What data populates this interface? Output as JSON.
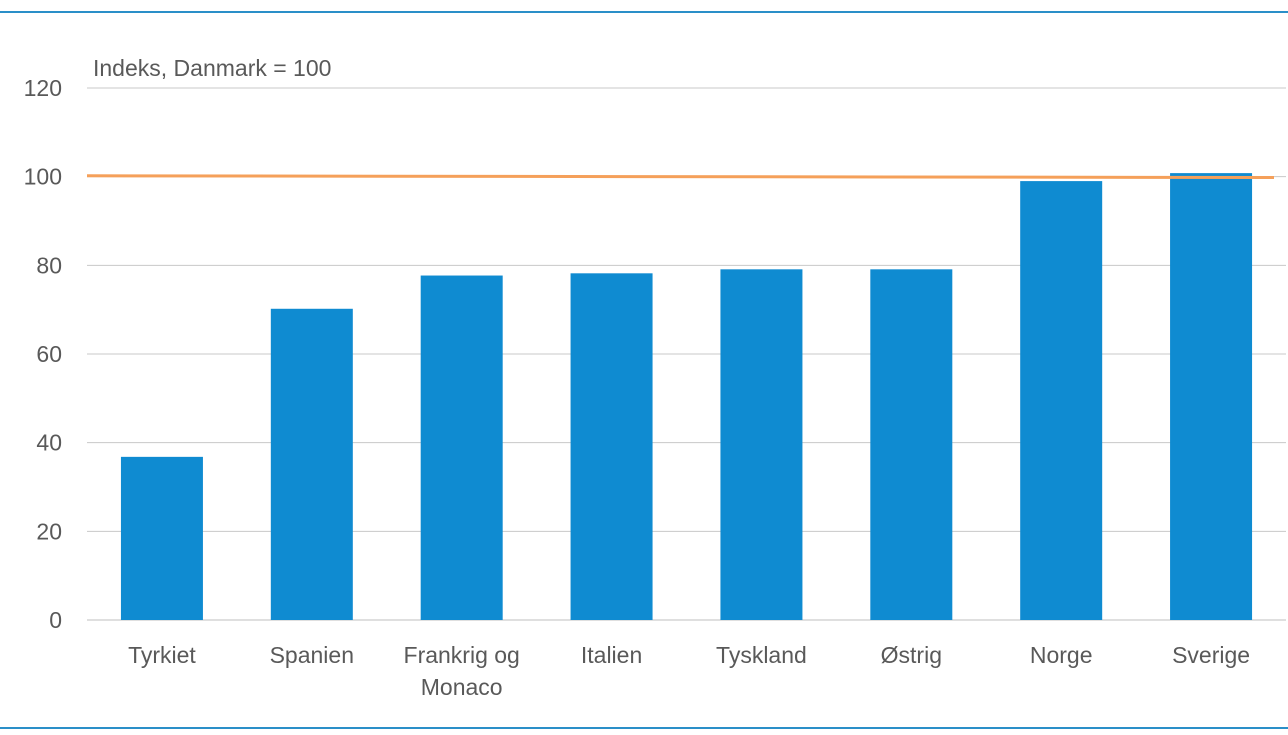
{
  "chart_data": {
    "type": "bar",
    "ylabel": "Indeks, Danmark = 100",
    "categories": [
      [
        "Tyrkiet"
      ],
      [
        "Spanien"
      ],
      [
        "Frankrig og",
        "Monaco"
      ],
      [
        "Italien"
      ],
      [
        "Tyskland"
      ],
      [
        "Østrig"
      ],
      [
        "Norge"
      ],
      [
        "Sverige"
      ]
    ],
    "values": [
      36.8,
      70.2,
      77.7,
      78.2,
      79.1,
      79.1,
      99.0,
      100.8
    ],
    "reference_line": {
      "value": 100.2,
      "end_value": 99.8,
      "color": "#f5a05a"
    },
    "ylim": [
      0,
      120
    ],
    "yticks": [
      0,
      20,
      40,
      60,
      80,
      100,
      120
    ],
    "grid": true,
    "colors": {
      "bar": "#0f8bd1",
      "grid": "#c8c8c8",
      "frame": "#2a8fc8",
      "axis": "#bfbfbf"
    }
  }
}
